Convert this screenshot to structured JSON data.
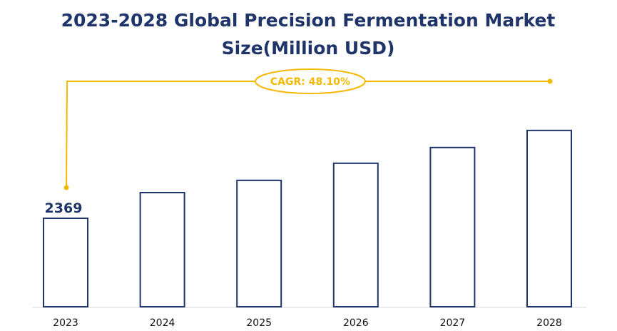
{
  "chart_data": {
    "type": "bar",
    "title_lines": [
      "2023-2028 Global Precision Fermentation Market",
      "Size(Million USD)"
    ],
    "categories": [
      "2023",
      "2024",
      "2025",
      "2026",
      "2027",
      "2028"
    ],
    "values": [
      2369,
      3057,
      3385,
      3843,
      4264,
      4722
    ],
    "data_labels": [
      "2369"
    ],
    "annotation": "CAGR: 48.10%",
    "xlabel": "",
    "ylabel": "",
    "grid": false,
    "legend": "none",
    "colors": {
      "bar_outline": "#1f3468",
      "bar_fill": "#ffffff",
      "annotation": "#f5b800"
    }
  }
}
